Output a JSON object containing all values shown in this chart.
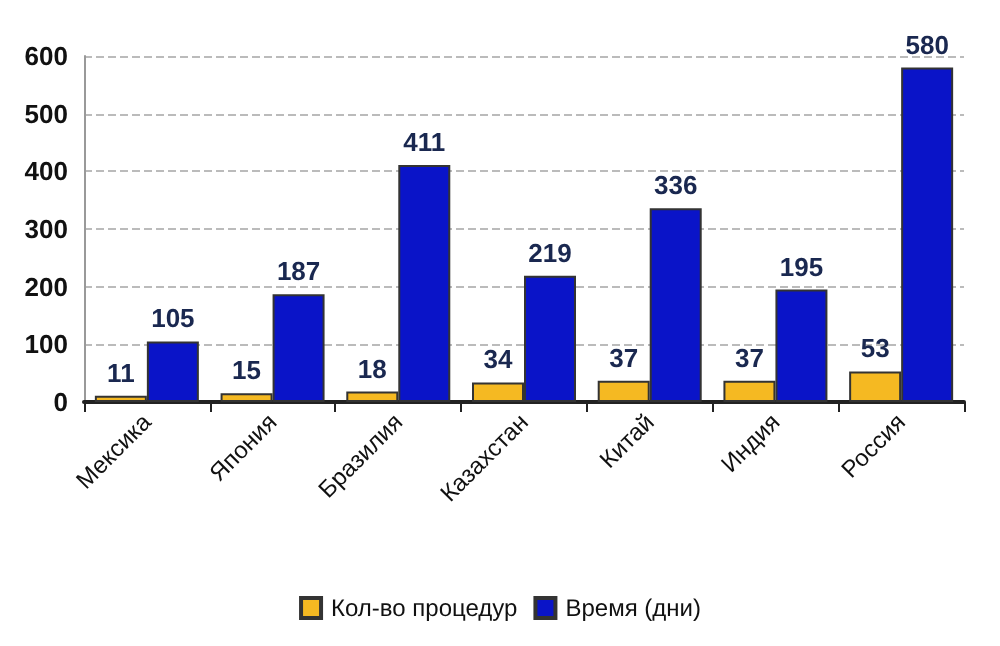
{
  "chart_data": {
    "type": "bar",
    "categories": [
      "Мексика",
      "Япония",
      "Бразилия",
      "Казахстан",
      "Китай",
      "Индия",
      "Россия"
    ],
    "series": [
      {
        "name": "Кол-во процедур",
        "color": "#f5b922",
        "values": [
          11,
          15,
          18,
          34,
          37,
          37,
          53
        ]
      },
      {
        "name": "Время (дни)",
        "color": "#0a14c8",
        "values": [
          105,
          187,
          411,
          219,
          336,
          195,
          580
        ]
      }
    ],
    "ylim": [
      0,
      600
    ],
    "yticks": [
      0,
      100,
      200,
      300,
      400,
      500,
      600
    ],
    "grid": "y",
    "legend": "bottom",
    "data_labels": true
  }
}
